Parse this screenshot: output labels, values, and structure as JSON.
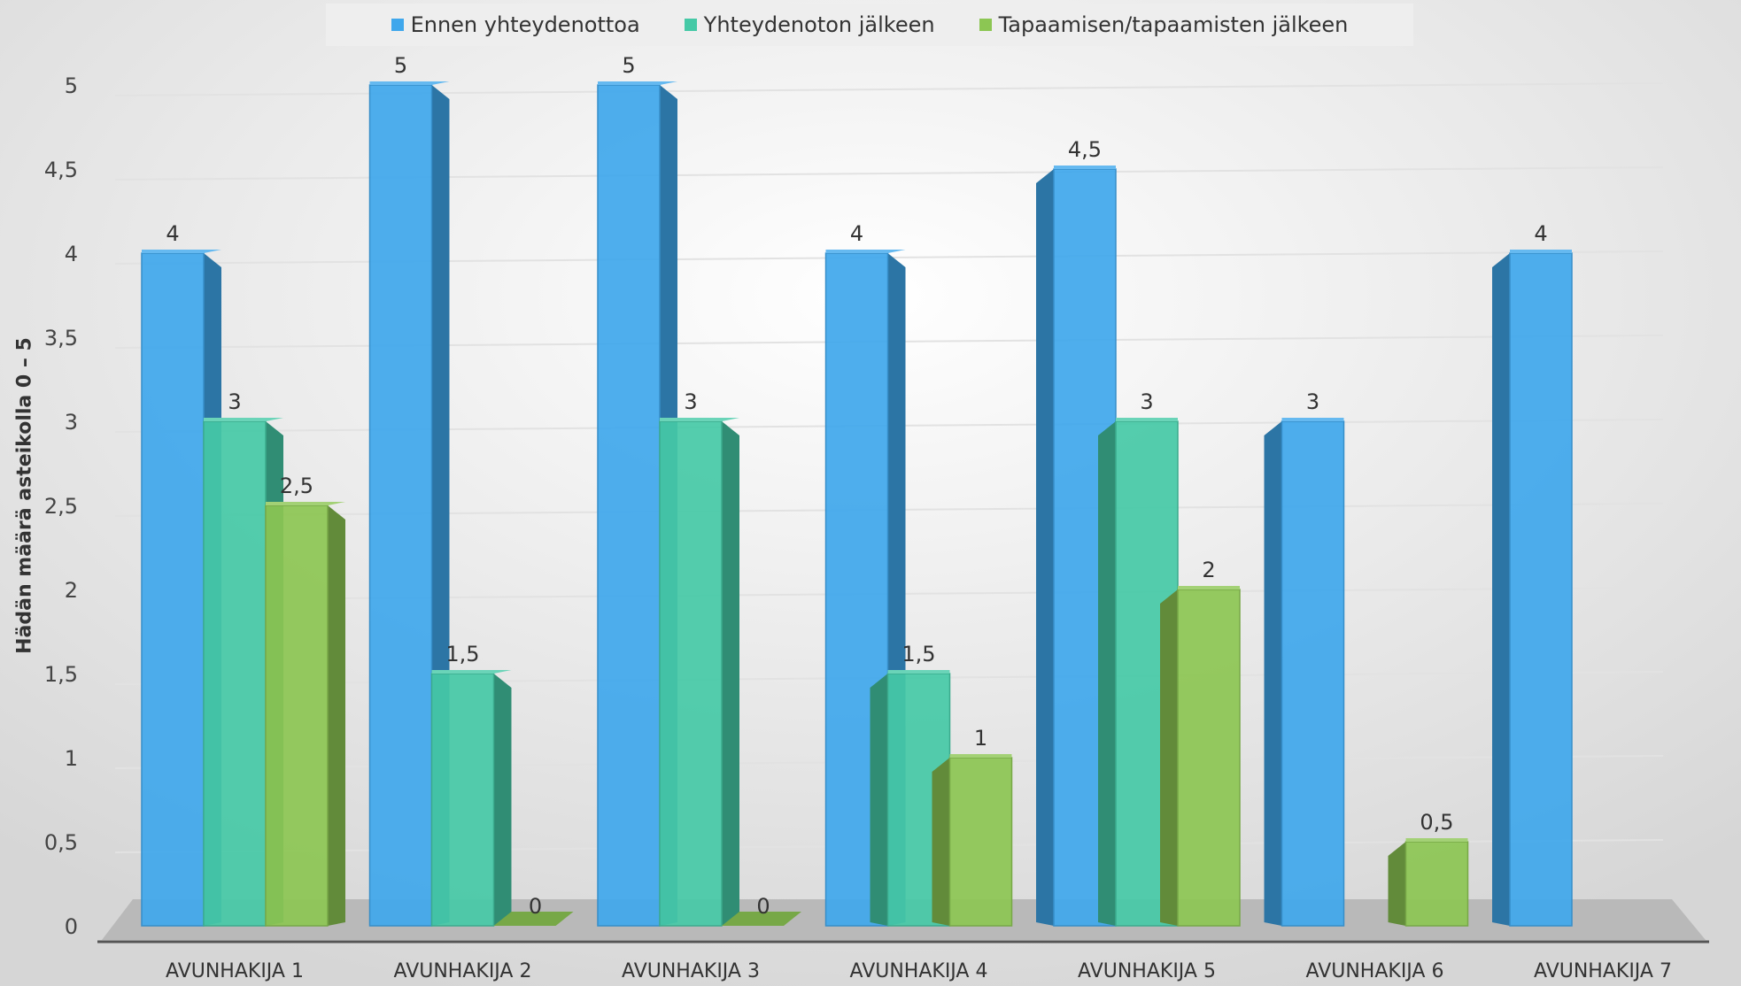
{
  "chart_data": {
    "type": "bar",
    "title": "",
    "xlabel": "",
    "ylabel": "Hädän määrä asteikolla 0 – 5",
    "ylim": [
      0,
      5
    ],
    "yticks": [
      "0",
      "0,5",
      "1",
      "1,5",
      "2",
      "2,5",
      "3",
      "3,5",
      "4",
      "4,5",
      "5"
    ],
    "grid": true,
    "legend_position": "top",
    "categories": [
      "AVUNHAKIJA 1",
      "AVUNHAKIJA 2",
      "AVUNHAKIJA 3",
      "AVUNHAKIJA 4",
      "AVUNHAKIJA 5",
      "AVUNHAKIJA 6",
      "AVUNHAKIJA 7"
    ],
    "series": [
      {
        "name": "Ennen yhteydenottoa",
        "color": "#3fa7ec",
        "values": [
          4,
          5,
          5,
          4,
          4.5,
          3,
          4
        ],
        "labels": [
          "4",
          "5",
          "5",
          "4",
          "4,5",
          "3",
          "4"
        ]
      },
      {
        "name": "Yhteydenoton jälkeen",
        "color": "#45c9a6",
        "values": [
          3,
          1.5,
          3,
          1.5,
          3,
          null,
          null
        ],
        "labels": [
          "3",
          "1,5",
          "3",
          "1,5",
          "3",
          null,
          null
        ]
      },
      {
        "name": "Tapaamisen/tapaamisten jälkeen",
        "color": "#8cc653",
        "values": [
          2.5,
          0,
          0,
          1,
          2,
          0.5,
          null
        ],
        "labels": [
          "2,5",
          "0",
          "0",
          "1",
          "2",
          "0,5",
          null
        ]
      }
    ]
  }
}
